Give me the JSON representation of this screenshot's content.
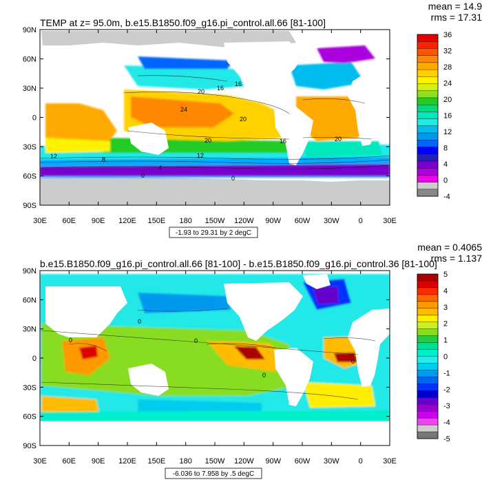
{
  "chart_data": [
    {
      "type": "heatmap",
      "title": "TEMP at z=  95.0m, b.e15.B1850.f09_g16.pi_control.all.66 [81-100]",
      "stats": {
        "mean": "mean = 14.9",
        "rms": "rms = 17.31"
      },
      "range_note": "-1.93 to 29.31 by 2 degC",
      "lat_ticks": [
        "90N",
        "60N",
        "30N",
        "0",
        "30S",
        "60S",
        "90S"
      ],
      "lon_ticks": [
        "30E",
        "60E",
        "90E",
        "120E",
        "150E",
        "180",
        "150W",
        "120W",
        "90W",
        "60W",
        "30W",
        "0",
        "30E"
      ],
      "colorbar_labels": [
        "36",
        "32",
        "28",
        "24",
        "20",
        "16",
        "12",
        "8",
        "4",
        "0",
        "-4"
      ],
      "contour_labels": [
        "24",
        "20",
        "20",
        "16",
        "20",
        "16",
        "20",
        "12",
        "8",
        "12",
        "4",
        "0",
        "0",
        "16"
      ],
      "colors": [
        "#e60000",
        "#ff2200",
        "#ff5500",
        "#ff8800",
        "#ffaa00",
        "#ffd100",
        "#fff200",
        "#d4ef16",
        "#8ee11c",
        "#22cc22",
        "#00dd77",
        "#00e8bb",
        "#22e8e8",
        "#00bbee",
        "#0099ee",
        "#0066ff",
        "#0000ff",
        "#2222bb",
        "#7700cc",
        "#aa00dd",
        "#ee00ee",
        "#cccccc",
        "#888888"
      ]
    },
    {
      "type": "heatmap",
      "title": "b.e15.B1850.f09_g16.pi_control.all.66 [81-100] - b.e15.B1850.f09_g16.pi_control.36 [81-100]",
      "stats": {
        "mean": "mean = 0.4065",
        "rms": "rms = 1.137"
      },
      "range_note": "-6.036 to 7.958 by .5 degC",
      "lat_ticks": [
        "90N",
        "60N",
        "30N",
        "0",
        "30S",
        "60S",
        "90S"
      ],
      "lon_ticks": [
        "30E",
        "60E",
        "90E",
        "120E",
        "150E",
        "180",
        "150W",
        "120W",
        "90W",
        "60W",
        "30W",
        "0",
        "30E"
      ],
      "colorbar_labels": [
        "5",
        "4",
        "3",
        "2",
        "1",
        "0",
        "-1",
        "-2",
        "-3",
        "-4",
        "-5"
      ],
      "contour_labels": [
        "0",
        "0",
        "0",
        "0",
        "0"
      ],
      "colors": [
        "#aa0000",
        "#dd0000",
        "#ff2a00",
        "#ff6600",
        "#ff9900",
        "#ffbb00",
        "#ffee00",
        "#ccee22",
        "#88dd22",
        "#22cc44",
        "#00dd99",
        "#00eecc",
        "#22eeee",
        "#00ccee",
        "#0099ee",
        "#0066ee",
        "#0033ff",
        "#0000cc",
        "#6600cc",
        "#9900cc",
        "#cc00ee",
        "#ee44ee",
        "#cccccc",
        "#777777"
      ]
    }
  ]
}
